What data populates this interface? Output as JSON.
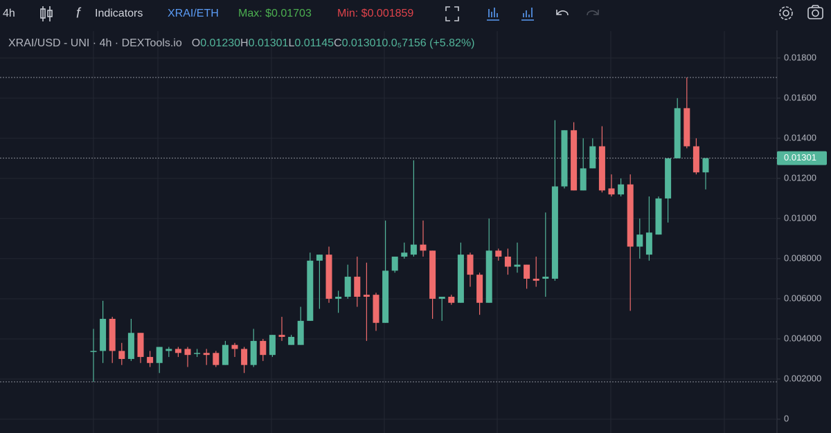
{
  "toolbar": {
    "interval": "4h",
    "indicators": "Indicators",
    "pair": "XRAI/ETH",
    "max": "Max: $0.01703",
    "min": "Min: $0.001859"
  },
  "legend": {
    "symbol": "XRAI/USD - UNI · 4h · DEXTools.io",
    "o_label": "O",
    "o_value": "0.01230",
    "h_label": "H",
    "h_value": "0.01301",
    "l_label": "L",
    "l_value": "0.01145",
    "c_label": "C",
    "c_value": "0.01301",
    "change": "0.0₅7156 (+5.82%)"
  },
  "chart_data": {
    "type": "candlestick",
    "categories": [
      null,
      null,
      null,
      null,
      null,
      null,
      null,
      null,
      null,
      null,
      null,
      null,
      null,
      null,
      null,
      null,
      null,
      null,
      null,
      null,
      null,
      null,
      null,
      null,
      null,
      null,
      null,
      null,
      null,
      null,
      null,
      null,
      null,
      null,
      null,
      null,
      null,
      null,
      null,
      null,
      null,
      null,
      null,
      null,
      null,
      null,
      null,
      null,
      null,
      null,
      null,
      null,
      null,
      null,
      null,
      null,
      null,
      null,
      null,
      null,
      null,
      null,
      null,
      null,
      null,
      null
    ],
    "open": [
      0.0034,
      0.0034,
      0.005,
      0.0034,
      0.003,
      0.0043,
      0.0031,
      0.0028,
      0.0034,
      0.0035,
      0.0035,
      0.0033,
      0.0033,
      0.0033,
      0.0027,
      0.0037,
      0.0035,
      0.0027,
      0.0039,
      0.0032,
      0.0042,
      0.0037,
      0.0037,
      0.0049,
      0.0079,
      0.0082,
      0.006,
      0.0061,
      0.0071,
      0.0062,
      0.0062,
      0.0048,
      0.0074,
      0.0081,
      0.0082,
      0.0087,
      0.0084,
      0.006,
      0.0061,
      0.0058,
      0.0082,
      0.0072,
      0.0058,
      0.0084,
      0.0081,
      0.0076,
      0.0077,
      0.007,
      0.007,
      0.007,
      0.0116,
      0.0144,
      0.0114,
      0.0125,
      0.0136,
      0.0115,
      0.0112,
      0.0117,
      0.0086,
      0.0082,
      0.0092,
      0.011,
      0.013,
      0.0155,
      0.0136,
      0.0123
    ],
    "high": [
      0.0045,
      0.0059,
      0.0051,
      0.0038,
      0.005,
      0.0043,
      0.0034,
      0.0036,
      0.0036,
      0.0036,
      0.0036,
      0.0035,
      0.0035,
      0.0034,
      0.0039,
      0.0038,
      0.0036,
      0.0045,
      0.004,
      0.0042,
      0.0051,
      0.0042,
      0.0056,
      0.0083,
      0.0082,
      0.0086,
      0.0064,
      0.0077,
      0.0081,
      0.0078,
      0.0063,
      0.0099,
      0.0081,
      0.0088,
      0.0129,
      0.0099,
      0.0084,
      0.0061,
      0.0062,
      0.0088,
      0.0083,
      0.0073,
      0.01,
      0.0085,
      0.0085,
      0.0088,
      0.0077,
      0.0081,
      0.0103,
      0.0149,
      0.0144,
      0.0148,
      0.014,
      0.014,
      0.0146,
      0.0122,
      0.012,
      0.0122,
      0.01,
      0.0111,
      0.0111,
      0.013,
      0.016,
      0.01703,
      0.014,
      0.01301
    ],
    "low": [
      0.001859,
      0.0028,
      0.0028,
      0.0027,
      0.0029,
      0.0028,
      0.0026,
      0.0023,
      0.0031,
      0.0031,
      0.0026,
      0.0031,
      0.0027,
      0.0026,
      0.0027,
      0.0031,
      0.0023,
      0.0026,
      0.0029,
      0.0031,
      0.0039,
      0.0037,
      0.0037,
      0.0049,
      0.0055,
      0.0058,
      0.0053,
      0.006,
      0.0056,
      0.0039,
      0.0044,
      0.0048,
      0.0073,
      0.008,
      0.0081,
      0.0081,
      0.005,
      0.0049,
      0.0057,
      0.0058,
      0.0066,
      0.0052,
      0.0058,
      0.0079,
      0.0072,
      0.0073,
      0.0065,
      0.0066,
      0.0061,
      0.0069,
      0.0115,
      0.0114,
      0.0114,
      0.0125,
      0.0113,
      0.0111,
      0.0111,
      0.0054,
      0.008,
      0.0079,
      0.0092,
      0.0098,
      0.013,
      0.0135,
      0.0122,
      0.01145
    ],
    "close": [
      0.0034,
      0.005,
      0.0034,
      0.003,
      0.0043,
      0.0031,
      0.0028,
      0.0036,
      0.0035,
      0.0033,
      0.0032,
      0.0033,
      0.0032,
      0.0027,
      0.0037,
      0.0035,
      0.0027,
      0.0039,
      0.0032,
      0.0042,
      0.0041,
      0.0041,
      0.0049,
      0.0079,
      0.0082,
      0.006,
      0.0061,
      0.0071,
      0.0061,
      0.0061,
      0.0048,
      0.0074,
      0.0081,
      0.0083,
      0.0087,
      0.0084,
      0.006,
      0.0061,
      0.0058,
      0.0082,
      0.0072,
      0.0058,
      0.0084,
      0.0081,
      0.0076,
      0.0077,
      0.007,
      0.0069,
      0.0071,
      0.0116,
      0.0144,
      0.0114,
      0.0125,
      0.0136,
      0.0114,
      0.0112,
      0.0117,
      0.0086,
      0.0092,
      0.0093,
      0.011,
      0.013,
      0.0155,
      0.0136,
      0.0123,
      0.01301
    ],
    "up_color": "#53b69b",
    "down_color": "#ef6c6c",
    "ylim": [
      -0.00069,
      0.01934
    ],
    "yticks": [
      0,
      {
        "value": 0.002,
        "label": "0.002000"
      },
      {
        "value": 0.004,
        "label": "0.004000"
      },
      {
        "value": 0.006,
        "label": "0.006000"
      },
      {
        "value": 0.008,
        "label": "0.008000"
      },
      {
        "value": 0.01,
        "label": "0.01000"
      },
      {
        "value": 0.012,
        "label": "0.01200"
      },
      {
        "value": 0.014,
        "label": "0.01400"
      },
      {
        "value": 0.016,
        "label": "0.01600"
      },
      {
        "value": 0.018,
        "label": "0.01800"
      }
    ],
    "grid": true
  }
}
